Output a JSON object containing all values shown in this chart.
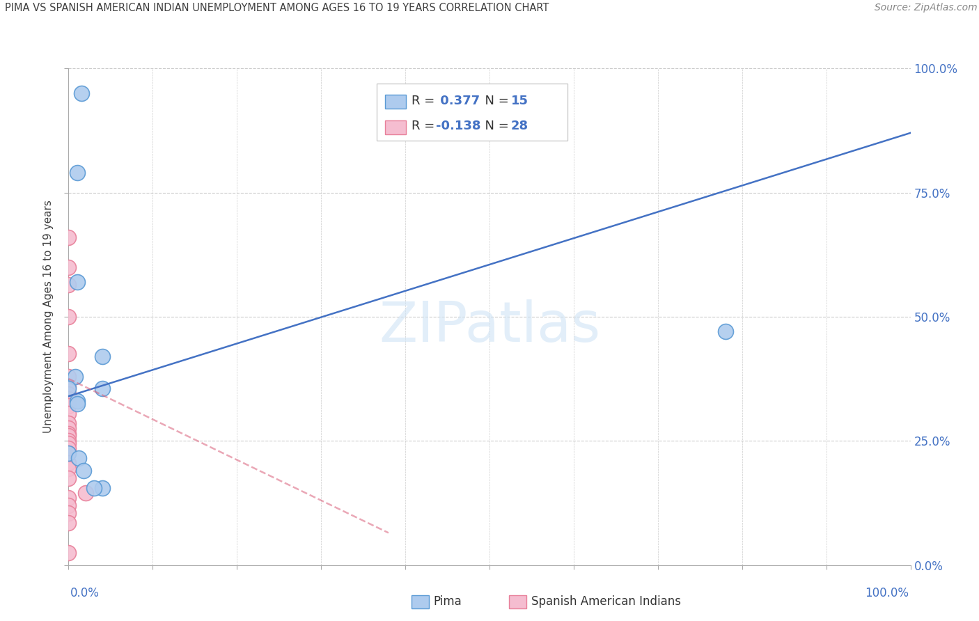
{
  "title": "PIMA VS SPANISH AMERICAN INDIAN UNEMPLOYMENT AMONG AGES 16 TO 19 YEARS CORRELATION CHART",
  "source": "Source: ZipAtlas.com",
  "ylabel": "Unemployment Among Ages 16 to 19 years",
  "xlabel_label_pima": "Pima",
  "xlabel_label_spanish": "Spanish American Indians",
  "xlim": [
    0,
    1.0
  ],
  "ylim": [
    0,
    1.0
  ],
  "ytick_positions": [
    0,
    0.25,
    0.5,
    0.75,
    1.0
  ],
  "ytick_labels": [
    "0.0%",
    "25.0%",
    "50.0%",
    "75.0%",
    "100.0%"
  ],
  "pima_R": 0.377,
  "pima_N": 15,
  "spanish_R": -0.138,
  "spanish_N": 28,
  "pima_color": "#aecbee",
  "pima_edge_color": "#5b9bd5",
  "spanish_color": "#f5bdd0",
  "spanish_edge_color": "#e8809a",
  "watermark": "ZIPatlas",
  "pima_x": [
    0.015,
    0.01,
    0.01,
    0.008,
    0.0,
    0.04,
    0.04,
    0.0,
    0.012,
    0.018,
    0.01,
    0.78,
    0.01,
    0.04,
    0.03
  ],
  "pima_y": [
    0.95,
    0.79,
    0.57,
    0.38,
    0.355,
    0.355,
    0.42,
    0.225,
    0.215,
    0.19,
    0.33,
    0.47,
    0.325,
    0.155,
    0.155
  ],
  "spanish_x": [
    0.0,
    0.0,
    0.0,
    0.0,
    0.0,
    0.0,
    0.0,
    0.0,
    0.0,
    0.0,
    0.0,
    0.0,
    0.0,
    0.0,
    0.0,
    0.0,
    0.0,
    0.0,
    0.0,
    0.0,
    0.0,
    0.0,
    0.02,
    0.0,
    0.0,
    0.0,
    0.0,
    0.0
  ],
  "spanish_y": [
    0.66,
    0.6,
    0.565,
    0.5,
    0.425,
    0.38,
    0.36,
    0.345,
    0.335,
    0.32,
    0.305,
    0.285,
    0.275,
    0.265,
    0.26,
    0.25,
    0.245,
    0.235,
    0.225,
    0.205,
    0.195,
    0.175,
    0.145,
    0.135,
    0.12,
    0.105,
    0.085,
    0.025
  ],
  "pima_trendline_x0": 0.0,
  "pima_trendline_y0": 0.34,
  "pima_trendline_x1": 1.0,
  "pima_trendline_y1": 0.87,
  "spanish_trendline_x0": 0.0,
  "spanish_trendline_y0": 0.375,
  "spanish_trendline_x1": 0.38,
  "spanish_trendline_y1": 0.065,
  "background_color": "#ffffff",
  "grid_color": "#cccccc",
  "title_color": "#404040",
  "axis_label_color": "#404040",
  "tick_color": "#4472c4",
  "source_color": "#888888",
  "pima_line_color": "#4472c4",
  "spanish_line_color": "#d9607a"
}
